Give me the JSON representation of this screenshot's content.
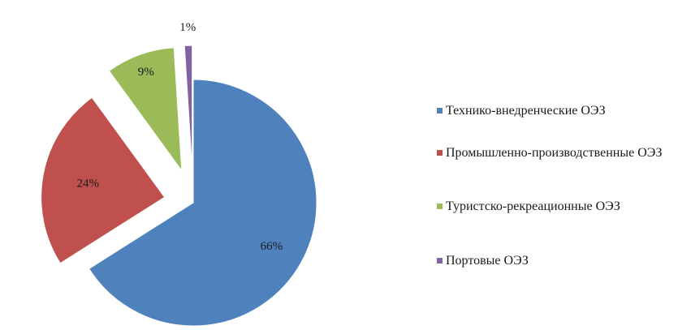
{
  "chart_data": {
    "type": "pie",
    "exploded": true,
    "legend_position": "right",
    "slices": [
      {
        "label": "Технико-внедренческие  ОЭЗ",
        "value": 66,
        "display": "66%",
        "color": "#4f81bd"
      },
      {
        "label": "Промышленно-производственные  ОЭЗ",
        "value": 24,
        "display": "24%",
        "color": "#c0504d"
      },
      {
        "label": "Туристско-рекреационные ОЭЗ",
        "value": 9,
        "display": "9%",
        "color": "#9bbb59"
      },
      {
        "label": "Портовые ОЭЗ",
        "value": 1,
        "display": "1%",
        "color": "#8064a2"
      }
    ]
  }
}
